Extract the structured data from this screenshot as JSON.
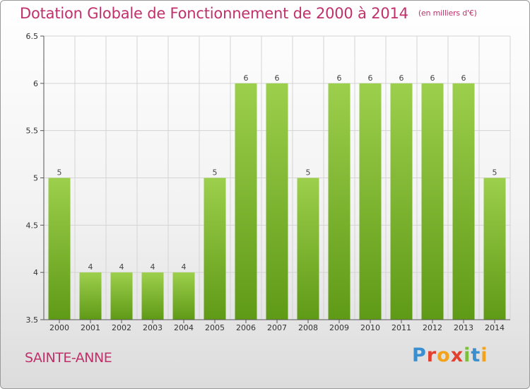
{
  "header": {
    "title": "Dotation Globale de Fonctionnement de 2000 à 2014",
    "unit": "(en milliers d'€)"
  },
  "footer": {
    "city": "SAINTE-ANNE",
    "brand": "Proxiti",
    "brand_letters": [
      "P",
      "r",
      "o",
      "x",
      "i",
      "t",
      "i"
    ]
  },
  "chart_data": {
    "type": "bar",
    "title": "Dotation Globale de Fonctionnement de 2000 à 2014",
    "subtitle": "(en milliers d'€)",
    "xlabel": "",
    "ylabel": "",
    "categories": [
      "2000",
      "2001",
      "2002",
      "2003",
      "2004",
      "2005",
      "2006",
      "2007",
      "2008",
      "2009",
      "2010",
      "2011",
      "2012",
      "2013",
      "2014"
    ],
    "values": [
      5,
      4,
      4,
      4,
      4,
      5,
      6,
      6,
      5,
      6,
      6,
      6,
      6,
      6,
      5
    ],
    "data_labels": [
      "5",
      "4",
      "4",
      "4",
      "4",
      "5",
      "6",
      "6",
      "5",
      "6",
      "6",
      "6",
      "6",
      "6",
      "5"
    ],
    "ylim": [
      3.5,
      6.5
    ],
    "yticks": [
      3.5,
      4,
      4.5,
      5,
      5.5,
      6,
      6.5
    ],
    "ytick_labels": [
      "3.5",
      "4",
      "4.5",
      "5",
      "5.5",
      "6",
      "6.5"
    ],
    "grid": true,
    "colors": {
      "bar_top": "#9ccf4c",
      "bar_bottom": "#5f9a16",
      "axis": "#555555",
      "grid": "#d4d4d4"
    }
  }
}
